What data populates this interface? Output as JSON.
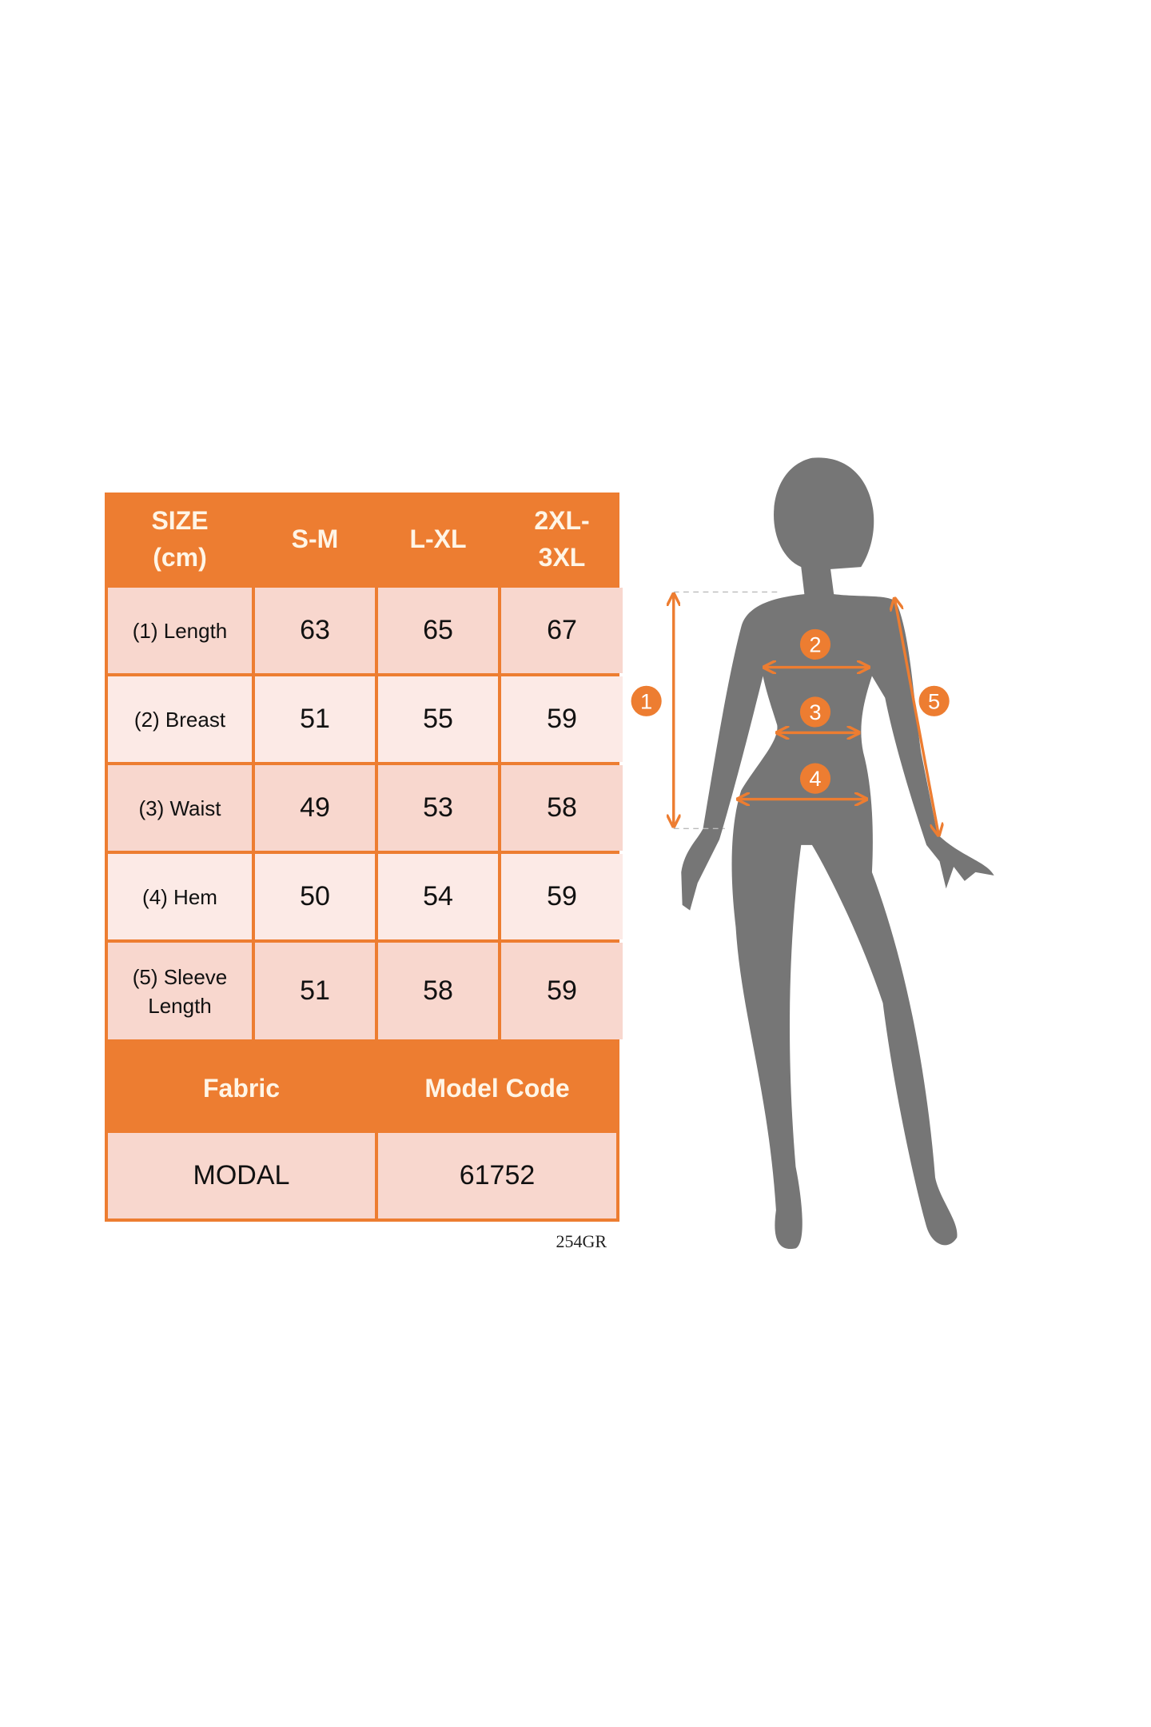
{
  "table": {
    "header": [
      "SIZE\n(cm)",
      "S-M",
      "L-XL",
      "2XL-\n3XL"
    ],
    "header_lines": [
      [
        "SIZE",
        "(cm)"
      ],
      [
        "S-M"
      ],
      [
        "L-XL"
      ],
      [
        "2XL-",
        "3XL"
      ]
    ],
    "rows": [
      {
        "label_lines": [
          "(1) Length"
        ],
        "values": [
          "63",
          "65",
          "67"
        ]
      },
      {
        "label_lines": [
          "(2) Breast"
        ],
        "values": [
          "51",
          "55",
          "59"
        ]
      },
      {
        "label_lines": [
          "(3) Waist"
        ],
        "values": [
          "49",
          "53",
          "58"
        ]
      },
      {
        "label_lines": [
          "(4) Hem"
        ],
        "values": [
          "50",
          "54",
          "59"
        ]
      },
      {
        "label_lines": [
          "(5) Sleeve",
          "Length"
        ],
        "values": [
          "51",
          "58",
          "59"
        ]
      }
    ],
    "footer_headers": [
      "Fabric",
      "Model Code"
    ],
    "footer_values": [
      "MODAL",
      "61752"
    ]
  },
  "code_label": "254GR",
  "figure": {
    "markers": [
      "1",
      "2",
      "3",
      "4",
      "5"
    ]
  },
  "colors": {
    "accent": "#ED7D31",
    "row_dark": "#F8D7CE",
    "row_light": "#FCEAE6",
    "silhouette": "#767676"
  }
}
